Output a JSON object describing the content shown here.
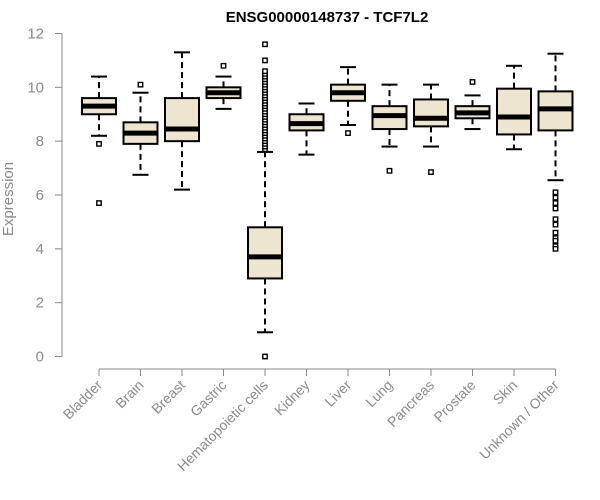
{
  "chart_data": {
    "type": "boxplot",
    "title": "ENSG00000148737 - TCF7L2",
    "xlabel": "",
    "ylabel": "Expression",
    "ylim": [
      0,
      12
    ],
    "yticks": [
      0,
      2,
      4,
      6,
      8,
      10,
      12
    ],
    "categories": [
      "Bladder",
      "Brain",
      "Breast",
      "Gastric",
      "Hematopoietic cells",
      "Kidney",
      "Liver",
      "Lung",
      "Pancreas",
      "Prostate",
      "Skin",
      "Unknown / Other"
    ],
    "boxes": [
      {
        "name": "Bladder",
        "min": 8.2,
        "q1": 9.0,
        "median": 9.3,
        "q3": 9.6,
        "max": 10.4,
        "outliers": [
          7.9,
          5.7
        ]
      },
      {
        "name": "Brain",
        "min": 6.75,
        "q1": 7.9,
        "median": 8.3,
        "q3": 8.7,
        "max": 9.8,
        "outliers": [
          10.1
        ]
      },
      {
        "name": "Breast",
        "min": 6.2,
        "q1": 8.0,
        "median": 8.45,
        "q3": 9.6,
        "max": 11.3,
        "outliers": []
      },
      {
        "name": "Gastric",
        "min": 9.2,
        "q1": 9.6,
        "median": 9.8,
        "q3": 10.0,
        "max": 10.4,
        "outliers": [
          10.8
        ]
      },
      {
        "name": "Hematopoietic cells",
        "min": 0.9,
        "q1": 2.9,
        "median": 3.7,
        "q3": 4.8,
        "max": 7.6,
        "outliers": [
          0.0,
          7.7,
          7.8,
          7.9,
          8.0,
          8.1,
          8.2,
          8.3,
          8.4,
          8.5,
          8.6,
          8.7,
          8.8,
          8.9,
          9.0,
          9.1,
          9.2,
          9.3,
          9.4,
          9.5,
          9.6,
          9.7,
          9.8,
          9.9,
          10.0,
          10.1,
          10.2,
          10.3,
          10.4,
          10.5,
          10.6,
          11.0,
          11.6
        ]
      },
      {
        "name": "Kidney",
        "min": 7.5,
        "q1": 8.4,
        "median": 8.65,
        "q3": 9.0,
        "max": 9.4,
        "outliers": []
      },
      {
        "name": "Liver",
        "min": 8.6,
        "q1": 9.5,
        "median": 9.8,
        "q3": 10.1,
        "max": 10.75,
        "outliers": [
          8.3
        ]
      },
      {
        "name": "Lung",
        "min": 7.8,
        "q1": 8.45,
        "median": 8.95,
        "q3": 9.3,
        "max": 10.1,
        "outliers": [
          6.9
        ]
      },
      {
        "name": "Pancreas",
        "min": 7.8,
        "q1": 8.55,
        "median": 8.85,
        "q3": 9.55,
        "max": 10.1,
        "outliers": [
          6.85
        ]
      },
      {
        "name": "Prostate",
        "min": 8.45,
        "q1": 8.85,
        "median": 9.05,
        "q3": 9.3,
        "max": 9.7,
        "outliers": [
          10.2
        ]
      },
      {
        "name": "Skin",
        "min": 7.7,
        "q1": 8.25,
        "median": 8.9,
        "q3": 9.95,
        "max": 10.8,
        "outliers": []
      },
      {
        "name": "Unknown / Other",
        "min": 6.55,
        "q1": 8.4,
        "median": 9.2,
        "q3": 9.85,
        "max": 11.25,
        "outliers": [
          6.1,
          5.9,
          5.7,
          5.5,
          5.1,
          4.9,
          4.6,
          4.4,
          4.3,
          4.1,
          4.0
        ]
      }
    ],
    "colors": {
      "box_fill": "#ede5cf",
      "box_stroke": "#000000",
      "axis": "#8a8a8a"
    }
  }
}
